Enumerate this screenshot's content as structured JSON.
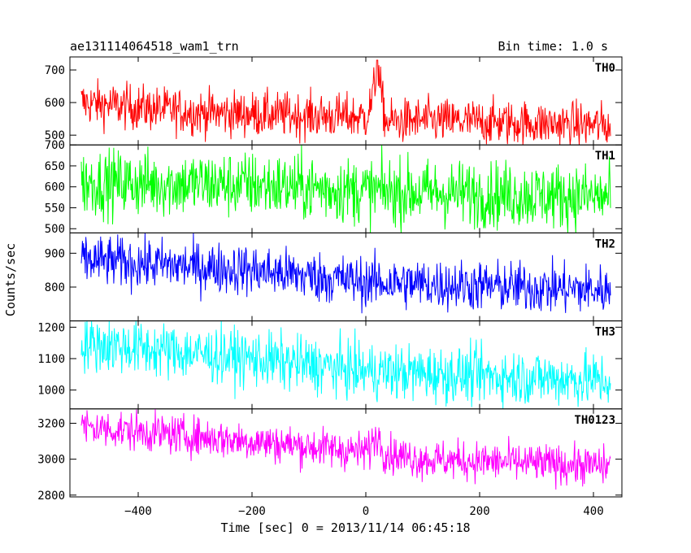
{
  "header": {
    "title": "ae131114064518_wam1_trn",
    "bin_time": "Bin time: 1.0 s"
  },
  "chart_data": {
    "type": "line",
    "title": "ae131114064518_wam1_trn",
    "subtitle": "Bin time: 1.0 s",
    "xlabel": "Time [sec] 0 = 2013/11/14 06:45:18",
    "ylabel": "Counts/sec",
    "xlim": [
      -520,
      450
    ],
    "x_ticks": [
      -400,
      -200,
      0,
      200,
      400
    ],
    "x_range_data": [
      -500,
      430
    ],
    "grid": false,
    "panels": [
      {
        "name": "TH0",
        "color": "#ff0000",
        "ylim": [
          470,
          740
        ],
        "y_ticks": [
          500,
          600,
          700
        ],
        "trend": [
          [
            -500,
            600
          ],
          [
            -300,
            570
          ],
          [
            -100,
            560
          ],
          [
            0,
            555
          ],
          [
            10,
            600
          ],
          [
            20,
            700
          ],
          [
            35,
            540
          ],
          [
            100,
            545
          ],
          [
            430,
            530
          ]
        ],
        "spike": {
          "x": 20,
          "y": 730
        },
        "noise": 35
      },
      {
        "name": "TH1",
        "color": "#00ff00",
        "ylim": [
          490,
          700
        ],
        "y_ticks": [
          500,
          550,
          600,
          650,
          700
        ],
        "trend": [
          [
            -500,
            610
          ],
          [
            -200,
            605
          ],
          [
            0,
            590
          ],
          [
            430,
            575
          ]
        ],
        "noise": 40
      },
      {
        "name": "TH2",
        "color": "#0000ff",
        "ylim": [
          700,
          960
        ],
        "y_ticks": [
          800,
          900
        ],
        "trend": [
          [
            -500,
            880
          ],
          [
            -200,
            850
          ],
          [
            0,
            815
          ],
          [
            430,
            790
          ]
        ],
        "noise": 38
      },
      {
        "name": "TH3",
        "color": "#00ffff",
        "ylim": [
          940,
          1220
        ],
        "y_ticks": [
          1000,
          1100,
          1200
        ],
        "trend": [
          [
            -500,
            1150
          ],
          [
            -200,
            1100
          ],
          [
            0,
            1060
          ],
          [
            430,
            1030
          ]
        ],
        "noise": 45
      },
      {
        "name": "TH0123",
        "color": "#ff00ff",
        "ylim": [
          2790,
          3280
        ],
        "y_ticks": [
          2800,
          3000,
          3200
        ],
        "trend": [
          [
            -500,
            3180
          ],
          [
            -200,
            3100
          ],
          [
            0,
            3040
          ],
          [
            10,
            3080
          ],
          [
            20,
            3140
          ],
          [
            35,
            3030
          ],
          [
            100,
            3000
          ],
          [
            430,
            2960
          ]
        ],
        "noise": 55
      }
    ]
  }
}
